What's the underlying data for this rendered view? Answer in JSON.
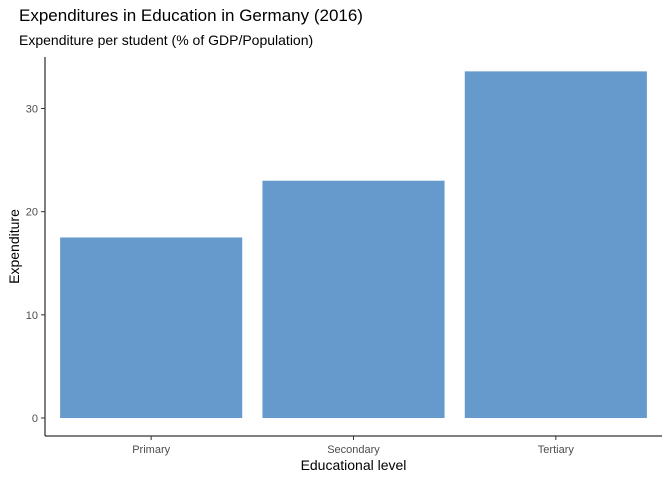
{
  "chart_data": {
    "type": "bar",
    "title": "Expenditures in Education in Germany (2016)",
    "subtitle": "Expenditure per student (% of GDP/Population)",
    "xlabel": "Educational level",
    "ylabel": "Expenditure",
    "categories": [
      "Primary",
      "Secondary",
      "Tertiary"
    ],
    "values": [
      17.5,
      23.0,
      33.6
    ],
    "ylim": [
      0,
      35
    ],
    "yticks": [
      0,
      10,
      20,
      30
    ],
    "bar_color": "#6699cc",
    "grid": false,
    "legend": "none"
  }
}
